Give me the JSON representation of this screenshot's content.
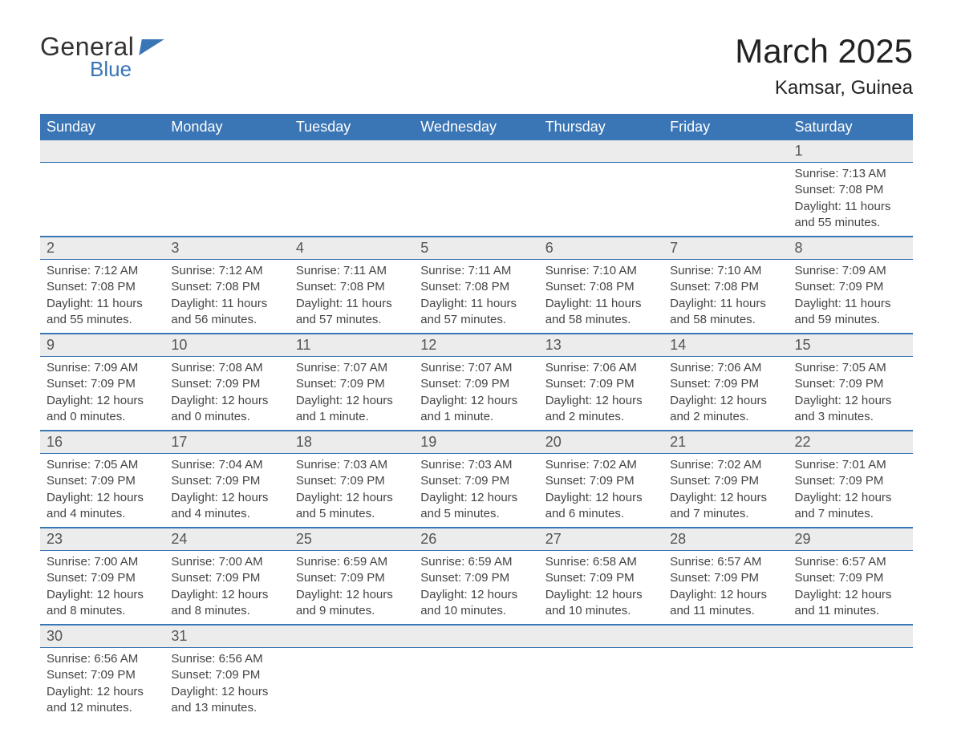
{
  "logo": {
    "text1": "General",
    "text2": "Blue"
  },
  "title": "March 2025",
  "location": "Kamsar, Guinea",
  "colors": {
    "header_bg": "#3a75b5",
    "header_text": "#ffffff",
    "daynum_bg": "#ececec",
    "border": "#3a75b5",
    "body_text": "#444444"
  },
  "day_headers": [
    "Sunday",
    "Monday",
    "Tuesday",
    "Wednesday",
    "Thursday",
    "Friday",
    "Saturday"
  ],
  "weeks": [
    [
      null,
      null,
      null,
      null,
      null,
      null,
      {
        "n": "1",
        "sr": "Sunrise: 7:13 AM",
        "ss": "Sunset: 7:08 PM",
        "dl": "Daylight: 11 hours and 55 minutes."
      }
    ],
    [
      {
        "n": "2",
        "sr": "Sunrise: 7:12 AM",
        "ss": "Sunset: 7:08 PM",
        "dl": "Daylight: 11 hours and 55 minutes."
      },
      {
        "n": "3",
        "sr": "Sunrise: 7:12 AM",
        "ss": "Sunset: 7:08 PM",
        "dl": "Daylight: 11 hours and 56 minutes."
      },
      {
        "n": "4",
        "sr": "Sunrise: 7:11 AM",
        "ss": "Sunset: 7:08 PM",
        "dl": "Daylight: 11 hours and 57 minutes."
      },
      {
        "n": "5",
        "sr": "Sunrise: 7:11 AM",
        "ss": "Sunset: 7:08 PM",
        "dl": "Daylight: 11 hours and 57 minutes."
      },
      {
        "n": "6",
        "sr": "Sunrise: 7:10 AM",
        "ss": "Sunset: 7:08 PM",
        "dl": "Daylight: 11 hours and 58 minutes."
      },
      {
        "n": "7",
        "sr": "Sunrise: 7:10 AM",
        "ss": "Sunset: 7:08 PM",
        "dl": "Daylight: 11 hours and 58 minutes."
      },
      {
        "n": "8",
        "sr": "Sunrise: 7:09 AM",
        "ss": "Sunset: 7:09 PM",
        "dl": "Daylight: 11 hours and 59 minutes."
      }
    ],
    [
      {
        "n": "9",
        "sr": "Sunrise: 7:09 AM",
        "ss": "Sunset: 7:09 PM",
        "dl": "Daylight: 12 hours and 0 minutes."
      },
      {
        "n": "10",
        "sr": "Sunrise: 7:08 AM",
        "ss": "Sunset: 7:09 PM",
        "dl": "Daylight: 12 hours and 0 minutes."
      },
      {
        "n": "11",
        "sr": "Sunrise: 7:07 AM",
        "ss": "Sunset: 7:09 PM",
        "dl": "Daylight: 12 hours and 1 minute."
      },
      {
        "n": "12",
        "sr": "Sunrise: 7:07 AM",
        "ss": "Sunset: 7:09 PM",
        "dl": "Daylight: 12 hours and 1 minute."
      },
      {
        "n": "13",
        "sr": "Sunrise: 7:06 AM",
        "ss": "Sunset: 7:09 PM",
        "dl": "Daylight: 12 hours and 2 minutes."
      },
      {
        "n": "14",
        "sr": "Sunrise: 7:06 AM",
        "ss": "Sunset: 7:09 PM",
        "dl": "Daylight: 12 hours and 2 minutes."
      },
      {
        "n": "15",
        "sr": "Sunrise: 7:05 AM",
        "ss": "Sunset: 7:09 PM",
        "dl": "Daylight: 12 hours and 3 minutes."
      }
    ],
    [
      {
        "n": "16",
        "sr": "Sunrise: 7:05 AM",
        "ss": "Sunset: 7:09 PM",
        "dl": "Daylight: 12 hours and 4 minutes."
      },
      {
        "n": "17",
        "sr": "Sunrise: 7:04 AM",
        "ss": "Sunset: 7:09 PM",
        "dl": "Daylight: 12 hours and 4 minutes."
      },
      {
        "n": "18",
        "sr": "Sunrise: 7:03 AM",
        "ss": "Sunset: 7:09 PM",
        "dl": "Daylight: 12 hours and 5 minutes."
      },
      {
        "n": "19",
        "sr": "Sunrise: 7:03 AM",
        "ss": "Sunset: 7:09 PM",
        "dl": "Daylight: 12 hours and 5 minutes."
      },
      {
        "n": "20",
        "sr": "Sunrise: 7:02 AM",
        "ss": "Sunset: 7:09 PM",
        "dl": "Daylight: 12 hours and 6 minutes."
      },
      {
        "n": "21",
        "sr": "Sunrise: 7:02 AM",
        "ss": "Sunset: 7:09 PM",
        "dl": "Daylight: 12 hours and 7 minutes."
      },
      {
        "n": "22",
        "sr": "Sunrise: 7:01 AM",
        "ss": "Sunset: 7:09 PM",
        "dl": "Daylight: 12 hours and 7 minutes."
      }
    ],
    [
      {
        "n": "23",
        "sr": "Sunrise: 7:00 AM",
        "ss": "Sunset: 7:09 PM",
        "dl": "Daylight: 12 hours and 8 minutes."
      },
      {
        "n": "24",
        "sr": "Sunrise: 7:00 AM",
        "ss": "Sunset: 7:09 PM",
        "dl": "Daylight: 12 hours and 8 minutes."
      },
      {
        "n": "25",
        "sr": "Sunrise: 6:59 AM",
        "ss": "Sunset: 7:09 PM",
        "dl": "Daylight: 12 hours and 9 minutes."
      },
      {
        "n": "26",
        "sr": "Sunrise: 6:59 AM",
        "ss": "Sunset: 7:09 PM",
        "dl": "Daylight: 12 hours and 10 minutes."
      },
      {
        "n": "27",
        "sr": "Sunrise: 6:58 AM",
        "ss": "Sunset: 7:09 PM",
        "dl": "Daylight: 12 hours and 10 minutes."
      },
      {
        "n": "28",
        "sr": "Sunrise: 6:57 AM",
        "ss": "Sunset: 7:09 PM",
        "dl": "Daylight: 12 hours and 11 minutes."
      },
      {
        "n": "29",
        "sr": "Sunrise: 6:57 AM",
        "ss": "Sunset: 7:09 PM",
        "dl": "Daylight: 12 hours and 11 minutes."
      }
    ],
    [
      {
        "n": "30",
        "sr": "Sunrise: 6:56 AM",
        "ss": "Sunset: 7:09 PM",
        "dl": "Daylight: 12 hours and 12 minutes."
      },
      {
        "n": "31",
        "sr": "Sunrise: 6:56 AM",
        "ss": "Sunset: 7:09 PM",
        "dl": "Daylight: 12 hours and 13 minutes."
      },
      null,
      null,
      null,
      null,
      null
    ]
  ]
}
